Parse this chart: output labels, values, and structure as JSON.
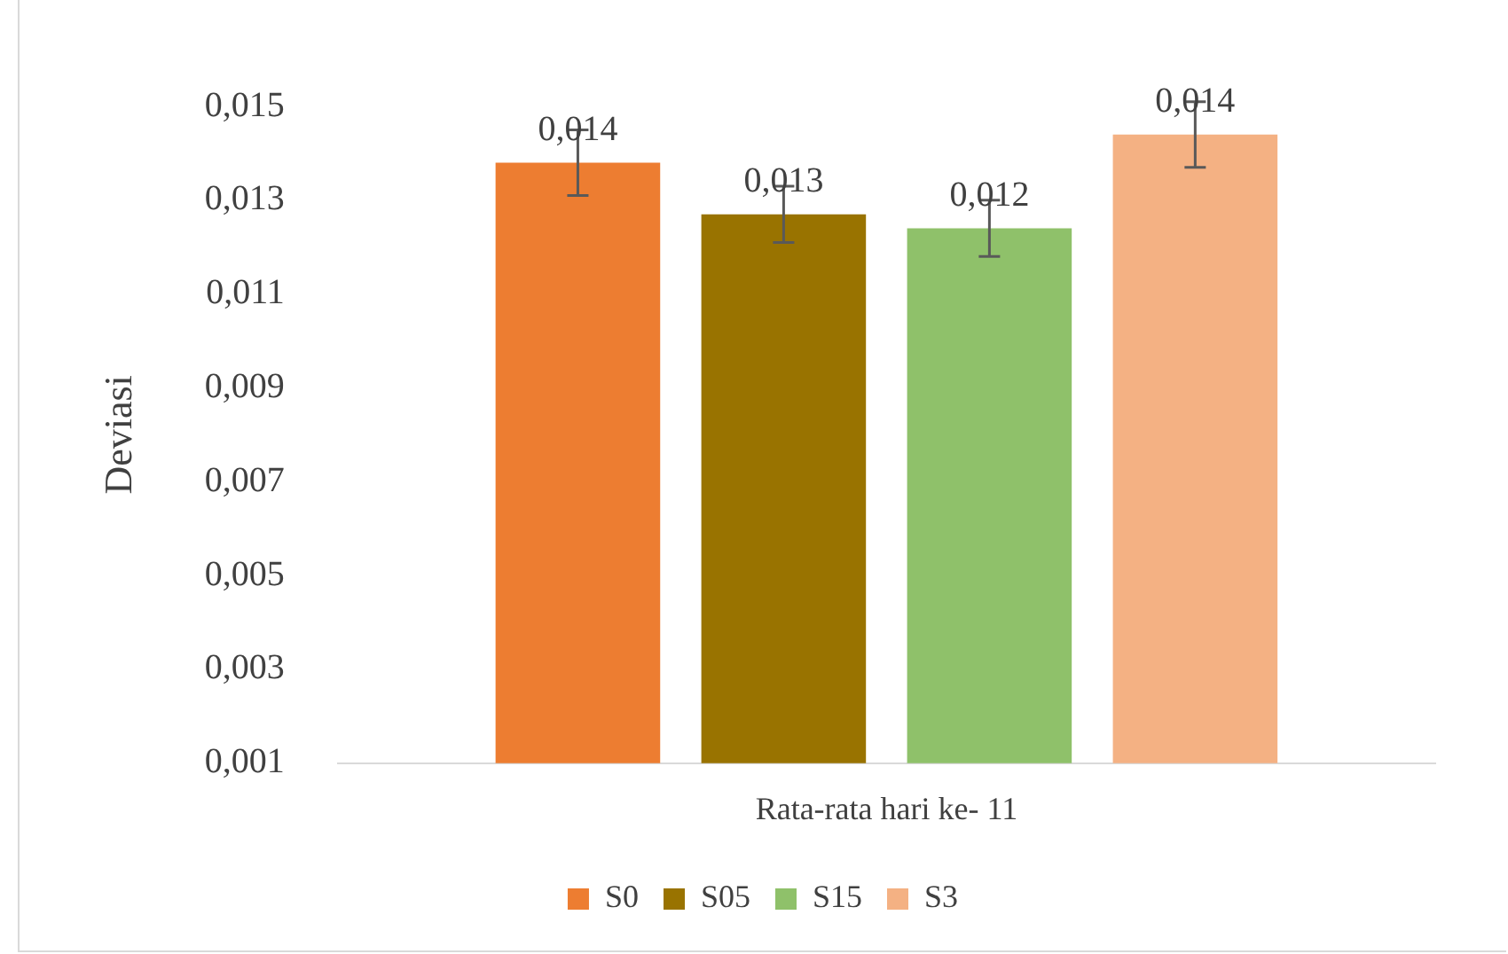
{
  "chart_data": {
    "type": "bar",
    "ylabel": "Deviasi",
    "categories": [
      "Rata-rata hari ke- 11"
    ],
    "series": [
      {
        "name": "S0",
        "color": "#ed7d31",
        "values": [
          0.0138
        ],
        "errors": [
          0.0007
        ],
        "value_labels": [
          "0,014"
        ]
      },
      {
        "name": "S05",
        "color": "#997300",
        "values": [
          0.0127
        ],
        "errors": [
          0.0006
        ],
        "value_labels": [
          "0,013"
        ]
      },
      {
        "name": "S15",
        "color": "#8fc16a",
        "values": [
          0.0124
        ],
        "errors": [
          0.0006
        ],
        "value_labels": [
          "0,012"
        ]
      },
      {
        "name": "S3",
        "color": "#f4b183",
        "values": [
          0.0144
        ],
        "errors": [
          0.0007
        ],
        "value_labels": [
          "0,014"
        ]
      }
    ],
    "ylim": [
      0.001,
      0.015
    ],
    "yticks": [
      {
        "value": 0.001,
        "label": "0,001"
      },
      {
        "value": 0.003,
        "label": "0,003"
      },
      {
        "value": 0.005,
        "label": "0,005"
      },
      {
        "value": 0.007,
        "label": "0,007"
      },
      {
        "value": 0.009,
        "label": "0,009"
      },
      {
        "value": 0.011,
        "label": "0,011"
      },
      {
        "value": 0.013,
        "label": "0,013"
      },
      {
        "value": 0.015,
        "label": "0,015"
      }
    ],
    "grid": false,
    "legend": "bottom"
  }
}
